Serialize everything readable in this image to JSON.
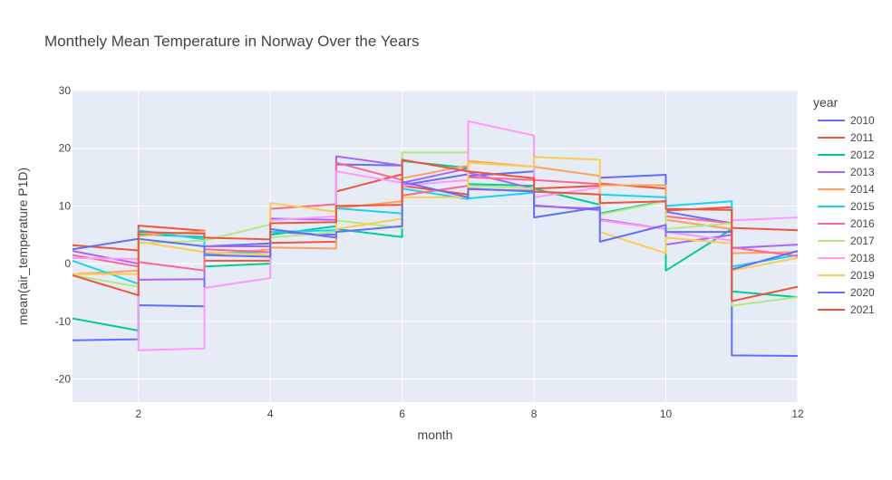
{
  "chart_data": {
    "type": "line",
    "title": "Monthely Mean Temperature in Norway Over the Years",
    "xlabel": "month",
    "ylabel": "mean(air_temperature P1D)",
    "xlim": [
      1,
      12
    ],
    "ylim": [
      -24,
      30
    ],
    "x_ticks": [
      2,
      4,
      6,
      8,
      10,
      12
    ],
    "y_ticks": [
      -20,
      -10,
      0,
      10,
      20,
      30
    ],
    "grid": true,
    "legend": {
      "title": "year",
      "placement": "right"
    },
    "series": [
      {
        "name": "2010",
        "color": "#636EFA",
        "points": [
          [
            1,
            -13.3
          ],
          [
            2,
            -13.1
          ],
          [
            2,
            -7.2
          ],
          [
            3,
            -7.4
          ],
          [
            3,
            3.0
          ],
          [
            4,
            3.5
          ],
          [
            4,
            5.5
          ],
          [
            5,
            5.0
          ],
          [
            5,
            17.2
          ],
          [
            6,
            17.0
          ],
          [
            6,
            13.6
          ],
          [
            7,
            15.5
          ],
          [
            7,
            15.2
          ],
          [
            8,
            16.0
          ],
          [
            8,
            10.1
          ],
          [
            9,
            9.3
          ],
          [
            9,
            14.9
          ],
          [
            10,
            15.4
          ],
          [
            10,
            9.0
          ],
          [
            11,
            7.0
          ],
          [
            11,
            -15.9
          ],
          [
            12,
            -16.0
          ]
        ]
      },
      {
        "name": "2011",
        "color": "#EF553B",
        "points": [
          [
            1,
            3.2
          ],
          [
            2,
            2.3
          ],
          [
            2,
            6.6
          ],
          [
            3,
            5.7
          ],
          [
            3,
            0.5
          ],
          [
            4,
            0.5
          ],
          [
            4,
            3.6
          ],
          [
            5,
            3.8
          ],
          [
            5,
            12.5
          ],
          [
            6,
            15.5
          ],
          [
            6,
            13.5
          ],
          [
            7,
            12.0
          ],
          [
            7,
            12.9
          ],
          [
            8,
            12.6
          ],
          [
            8,
            13.0
          ],
          [
            9,
            13.5
          ],
          [
            9,
            13.9
          ],
          [
            10,
            13.0
          ],
          [
            10,
            9.2
          ],
          [
            11,
            9.8
          ],
          [
            11,
            6.2
          ],
          [
            12,
            5.8
          ]
        ]
      },
      {
        "name": "2012",
        "color": "#00CC96",
        "points": [
          [
            1,
            -9.5
          ],
          [
            2,
            -11.6
          ],
          [
            2,
            5.1
          ],
          [
            3,
            4.6
          ],
          [
            3,
            -0.5
          ],
          [
            4,
            0.0
          ],
          [
            4,
            5.0
          ],
          [
            5,
            6.5
          ],
          [
            5,
            6.0
          ],
          [
            6,
            4.6
          ],
          [
            6,
            17.8
          ],
          [
            7,
            16.6
          ],
          [
            7,
            13.8
          ],
          [
            8,
            13.5
          ],
          [
            8,
            13.0
          ],
          [
            9,
            10.2
          ],
          [
            9,
            8.7
          ],
          [
            10,
            10.9
          ],
          [
            10,
            -1.2
          ],
          [
            11,
            6.0
          ],
          [
            11,
            -4.8
          ],
          [
            12,
            -5.8
          ]
        ]
      },
      {
        "name": "2013",
        "color": "#AB63FA",
        "points": [
          [
            1,
            2.2
          ],
          [
            2,
            0.0
          ],
          [
            2,
            -2.8
          ],
          [
            3,
            -2.7
          ],
          [
            3,
            3.0
          ],
          [
            4,
            3.0
          ],
          [
            4,
            7.8
          ],
          [
            5,
            7.6
          ],
          [
            5,
            18.6
          ],
          [
            6,
            17.0
          ],
          [
            6,
            14.0
          ],
          [
            7,
            16.5
          ],
          [
            7,
            15.8
          ],
          [
            8,
            13.0
          ],
          [
            8,
            10.0
          ],
          [
            9,
            9.5
          ],
          [
            9,
            7.7
          ],
          [
            10,
            6.0
          ],
          [
            10,
            3.3
          ],
          [
            11,
            5.0
          ],
          [
            11,
            2.7
          ],
          [
            12,
            3.3
          ]
        ]
      },
      {
        "name": "2014",
        "color": "#FFA15A",
        "points": [
          [
            1,
            -1.8
          ],
          [
            2,
            -1.2
          ],
          [
            2,
            4.8
          ],
          [
            3,
            5.6
          ],
          [
            3,
            1.5
          ],
          [
            4,
            2.5
          ],
          [
            4,
            2.8
          ],
          [
            5,
            2.6
          ],
          [
            5,
            9.6
          ],
          [
            6,
            10.8
          ],
          [
            6,
            14.8
          ],
          [
            7,
            17.0
          ],
          [
            7,
            17.8
          ],
          [
            8,
            16.8
          ],
          [
            8,
            16.8
          ],
          [
            9,
            15.2
          ],
          [
            9,
            13.6
          ],
          [
            10,
            13.6
          ],
          [
            10,
            7.6
          ],
          [
            11,
            6.0
          ],
          [
            11,
            1.8
          ],
          [
            12,
            2.0
          ]
        ]
      },
      {
        "name": "2015",
        "color": "#19D3F3",
        "points": [
          [
            1,
            0.5
          ],
          [
            2,
            -3.5
          ],
          [
            2,
            5.8
          ],
          [
            3,
            4.2
          ],
          [
            3,
            1.8
          ],
          [
            4,
            2.0
          ],
          [
            4,
            5.5
          ],
          [
            5,
            5.8
          ],
          [
            5,
            9.6
          ],
          [
            6,
            8.7
          ],
          [
            6,
            13.0
          ],
          [
            7,
            11.2
          ],
          [
            7,
            11.3
          ],
          [
            8,
            12.3
          ],
          [
            8,
            12.5
          ],
          [
            9,
            12.0
          ],
          [
            9,
            12.0
          ],
          [
            10,
            11.5
          ],
          [
            10,
            10.0
          ],
          [
            11,
            10.8
          ],
          [
            11,
            -0.5
          ],
          [
            12,
            1.5
          ]
        ]
      },
      {
        "name": "2016",
        "color": "#FF6692",
        "points": [
          [
            1,
            1.5
          ],
          [
            2,
            -0.5
          ],
          [
            2,
            0.3
          ],
          [
            3,
            -1.2
          ],
          [
            3,
            2.5
          ],
          [
            4,
            2.0
          ],
          [
            4,
            9.5
          ],
          [
            5,
            10.3
          ],
          [
            5,
            17.5
          ],
          [
            6,
            14.5
          ],
          [
            6,
            11.8
          ],
          [
            7,
            13.5
          ],
          [
            7,
            15.0
          ],
          [
            8,
            14.5
          ],
          [
            8,
            14.5
          ],
          [
            9,
            13.8
          ],
          [
            9,
            7.5
          ],
          [
            10,
            6.0
          ],
          [
            10,
            8.2
          ],
          [
            11,
            7.0
          ],
          [
            11,
            2.8
          ],
          [
            12,
            1.3
          ]
        ]
      },
      {
        "name": "2017",
        "color": "#B6E880",
        "points": [
          [
            1,
            -2.0
          ],
          [
            2,
            -4.0
          ],
          [
            2,
            3.5
          ],
          [
            3,
            4.0
          ],
          [
            3,
            4.0
          ],
          [
            4,
            6.8
          ],
          [
            4,
            4.5
          ],
          [
            5,
            5.5
          ],
          [
            5,
            7.5
          ],
          [
            6,
            6.2
          ],
          [
            6,
            19.3
          ],
          [
            7,
            19.3
          ],
          [
            7,
            13.5
          ],
          [
            8,
            13.0
          ],
          [
            8,
            12.5
          ],
          [
            9,
            12.0
          ],
          [
            9,
            8.5
          ],
          [
            10,
            10.8
          ],
          [
            10,
            6.0
          ],
          [
            11,
            7.0
          ],
          [
            11,
            -7.3
          ],
          [
            12,
            -5.8
          ]
        ]
      },
      {
        "name": "2018",
        "color": "#FF97FF",
        "points": [
          [
            1,
            1.0
          ],
          [
            2,
            0.8
          ],
          [
            2,
            -15.0
          ],
          [
            3,
            -14.7
          ],
          [
            3,
            -4.2
          ],
          [
            4,
            -2.5
          ],
          [
            4,
            7.5
          ],
          [
            5,
            8.2
          ],
          [
            5,
            16.0
          ],
          [
            6,
            14.0
          ],
          [
            6,
            13.5
          ],
          [
            7,
            14.5
          ],
          [
            7,
            24.7
          ],
          [
            8,
            22.2
          ],
          [
            8,
            11.5
          ],
          [
            9,
            13.2
          ],
          [
            9,
            7.5
          ],
          [
            10,
            6.0
          ],
          [
            10,
            5.5
          ],
          [
            11,
            4.0
          ],
          [
            11,
            7.5
          ],
          [
            12,
            8.0
          ]
        ]
      },
      {
        "name": "2019",
        "color": "#FECB52",
        "points": [
          [
            1,
            -1.8
          ],
          [
            2,
            -1.8
          ],
          [
            2,
            3.8
          ],
          [
            3,
            2.0
          ],
          [
            3,
            2.0
          ],
          [
            4,
            1.5
          ],
          [
            4,
            10.5
          ],
          [
            5,
            9.0
          ],
          [
            5,
            6.0
          ],
          [
            6,
            7.8
          ],
          [
            6,
            11.5
          ],
          [
            7,
            11.5
          ],
          [
            7,
            17.5
          ],
          [
            8,
            16.8
          ],
          [
            8,
            18.5
          ],
          [
            9,
            18.0
          ],
          [
            9,
            5.5
          ],
          [
            10,
            1.8
          ],
          [
            10,
            4.5
          ],
          [
            11,
            3.5
          ],
          [
            11,
            -1.2
          ],
          [
            12,
            1.0
          ]
        ]
      },
      {
        "name": "2020",
        "color": "#636EFA",
        "points": [
          [
            1,
            2.5
          ],
          [
            2,
            4.3
          ],
          [
            2,
            4.3
          ],
          [
            3,
            3.0
          ],
          [
            3,
            1.5
          ],
          [
            4,
            1.2
          ],
          [
            4,
            6.0
          ],
          [
            5,
            4.5
          ],
          [
            5,
            5.5
          ],
          [
            6,
            6.5
          ],
          [
            6,
            14.2
          ],
          [
            7,
            11.5
          ],
          [
            7,
            13.0
          ],
          [
            8,
            12.5
          ],
          [
            8,
            8.0
          ],
          [
            9,
            9.8
          ],
          [
            9,
            3.8
          ],
          [
            10,
            6.7
          ],
          [
            10,
            5.5
          ],
          [
            11,
            5.5
          ],
          [
            11,
            -1.0
          ],
          [
            12,
            2.2
          ]
        ]
      },
      {
        "name": "2021",
        "color": "#EF553B",
        "points": [
          [
            1,
            -2.0
          ],
          [
            2,
            -5.5
          ],
          [
            2,
            5.5
          ],
          [
            3,
            5.2
          ],
          [
            3,
            4.5
          ],
          [
            4,
            4.2
          ],
          [
            4,
            7.0
          ],
          [
            5,
            7.2
          ],
          [
            5,
            10.0
          ],
          [
            6,
            10.2
          ],
          [
            6,
            18.0
          ],
          [
            7,
            16.0
          ],
          [
            7,
            16.0
          ],
          [
            8,
            14.8
          ],
          [
            8,
            12.5
          ],
          [
            9,
            12.0
          ],
          [
            9,
            10.5
          ],
          [
            10,
            10.8
          ],
          [
            10,
            9.5
          ],
          [
            11,
            9.3
          ],
          [
            11,
            -6.5
          ],
          [
            12,
            -4.0
          ]
        ]
      }
    ]
  }
}
